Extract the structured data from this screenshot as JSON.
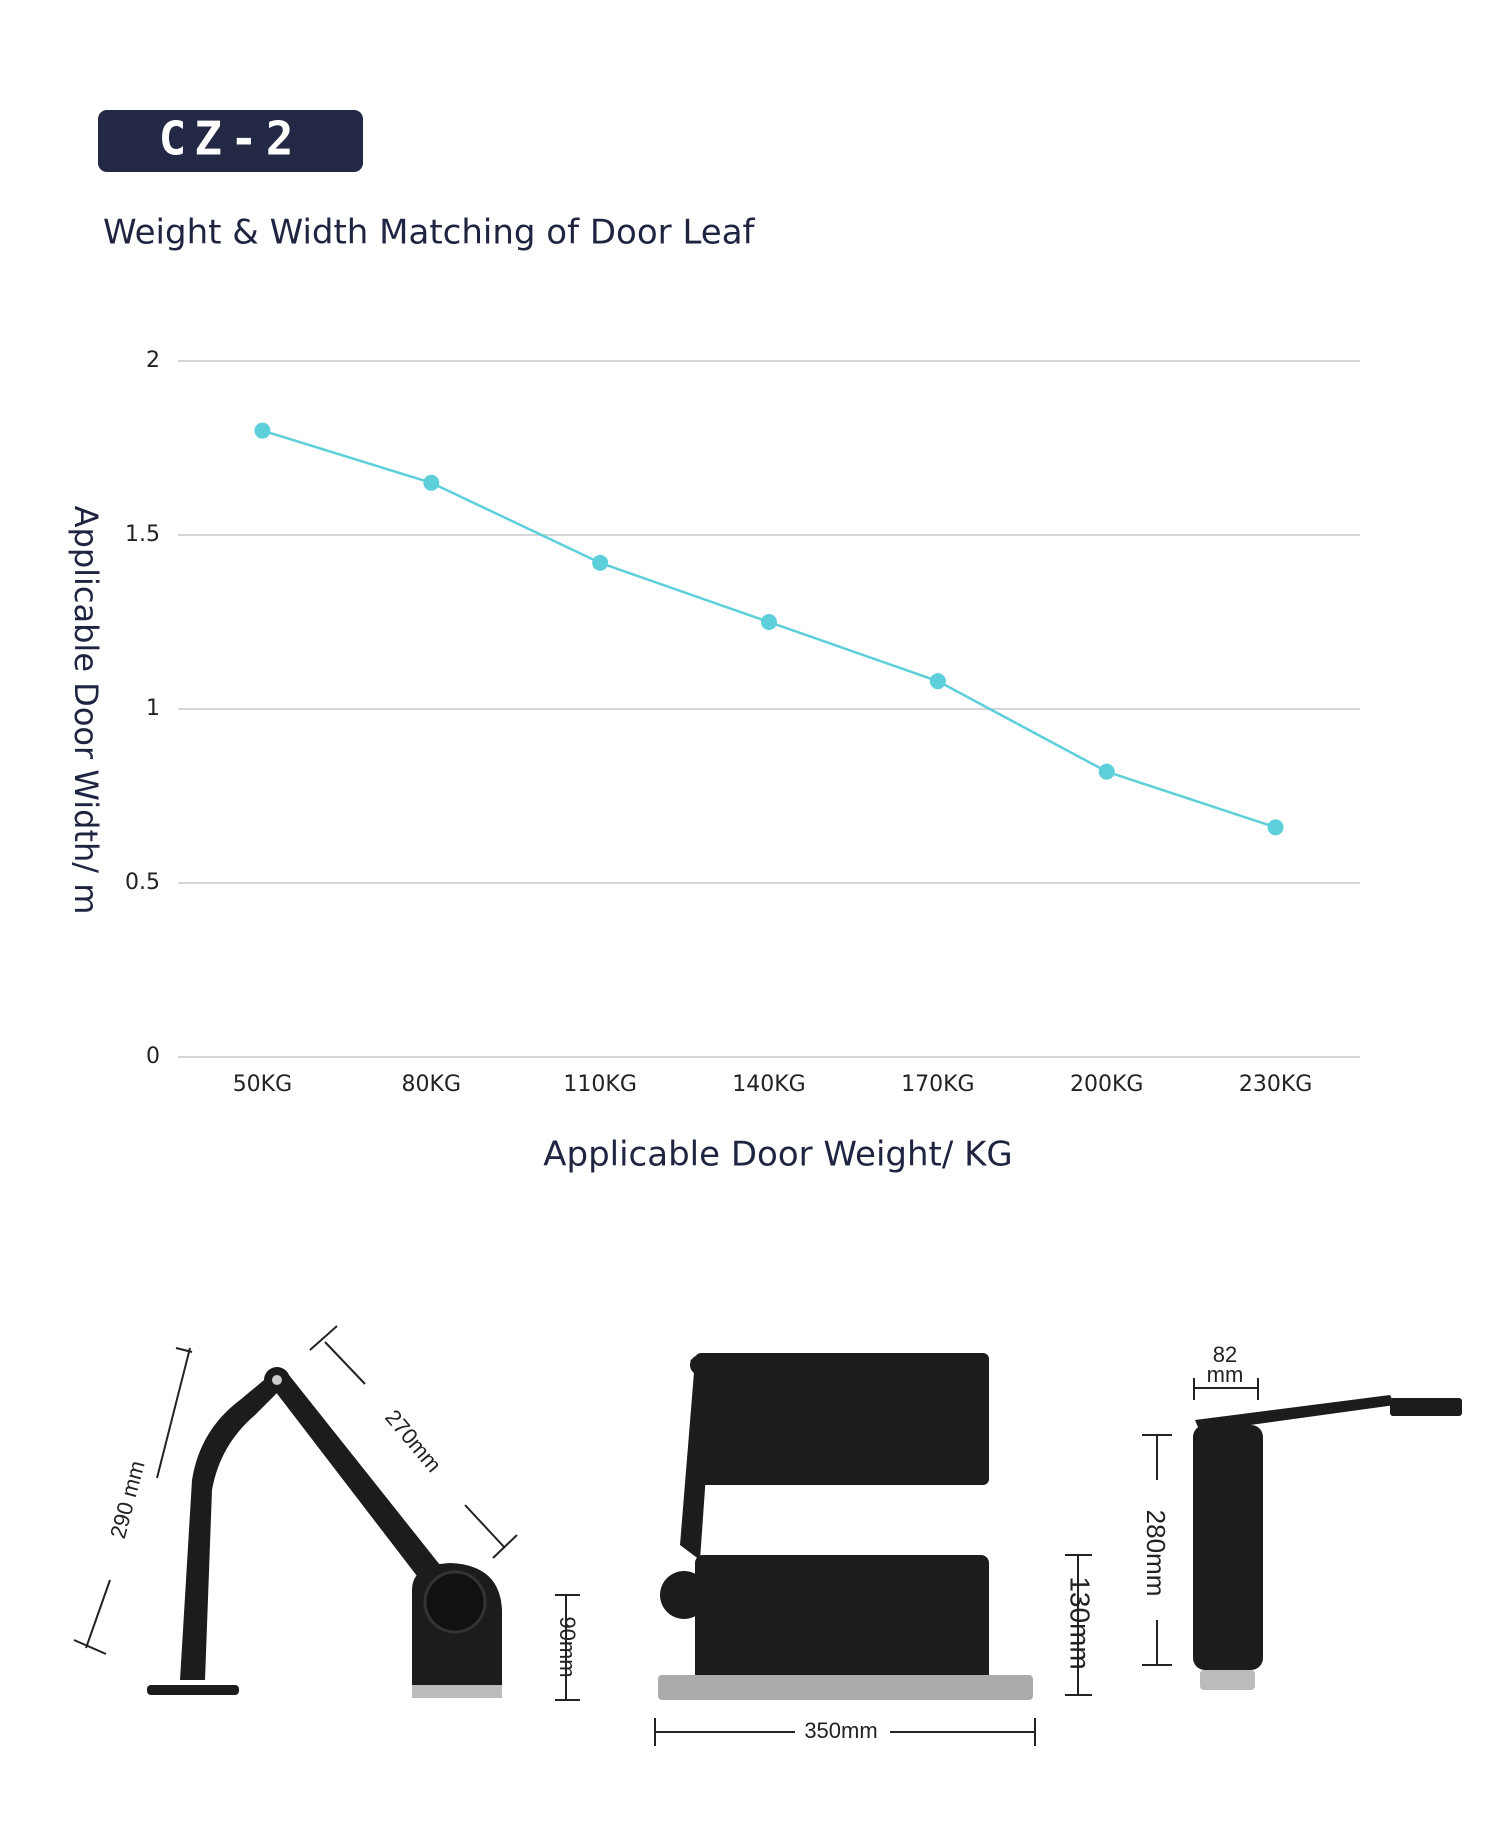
{
  "badge": "CZ-2",
  "chart_data": {
    "type": "line",
    "title": "Weight & Width Matching of Door Leaf",
    "x_label": "Applicable Door Weight/ KG",
    "y_label": "Applicable Door Width/ m",
    "categories": [
      "50KG",
      "80KG",
      "110KG",
      "140KG",
      "170KG",
      "200KG",
      "230KG"
    ],
    "values": [
      1.8,
      1.65,
      1.42,
      1.25,
      1.08,
      0.82,
      0.66
    ],
    "color": "#5ccfdb",
    "ylim": [
      0,
      2
    ],
    "yticks": [
      0,
      0.5,
      1,
      1.5,
      2
    ],
    "grid": true
  },
  "dimensions": {
    "arm_height": "290 mm",
    "arm_length": "270mm",
    "bracket_height": "90mm",
    "body_length": "350mm",
    "body_height": "130mm",
    "body_width": [
      "82",
      "mm"
    ],
    "body_side_length": "280mm"
  }
}
